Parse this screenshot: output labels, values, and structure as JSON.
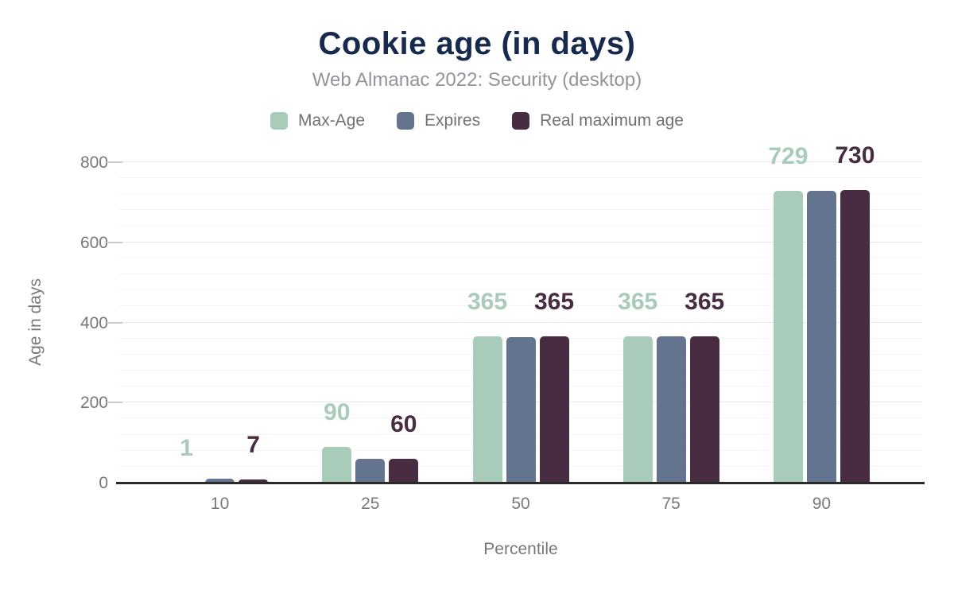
{
  "header": {
    "title": "Cookie age (in days)",
    "subtitle": "Web Almanac 2022: Security (desktop)"
  },
  "colors": {
    "title": "#17294d",
    "subtitle": "#8f959b",
    "legend_text": "#6d7278",
    "axis_text": "#76797c",
    "axis_line": "#2b2b2b",
    "grid_major": "#e7e7e7",
    "grid_minor": "#f4f4f4",
    "tick": "#c9c9c9",
    "series_max_age": "#a8cbba",
    "series_expires": "#64748f",
    "series_real_maximum_age": "#472c42"
  },
  "chart_data": {
    "type": "bar",
    "title": "Cookie age (in days)",
    "subtitle": "Web Almanac 2022: Security (desktop)",
    "xlabel": "Percentile",
    "ylabel": "Age in days",
    "categories": [
      "10",
      "25",
      "50",
      "75",
      "90"
    ],
    "series": [
      {
        "name": "Max-Age",
        "color": "#a8cbba",
        "values": [
          1,
          90,
          365,
          365,
          729
        ],
        "data_labels": [
          "1",
          "90",
          "365",
          "365",
          "729"
        ],
        "show_labels": true
      },
      {
        "name": "Expires",
        "color": "#64748f",
        "values": [
          10,
          60,
          364,
          365,
          729
        ],
        "data_labels": [],
        "show_labels": false
      },
      {
        "name": "Real maximum age",
        "color": "#472c42",
        "values": [
          7,
          60,
          365,
          365,
          730
        ],
        "data_labels": [
          "7",
          "60",
          "365",
          "365",
          "730"
        ],
        "show_labels": true
      }
    ],
    "ylim": [
      0,
      800
    ],
    "yticks": [
      0,
      200,
      400,
      600,
      800
    ],
    "minor_grid_step": 40,
    "major_grid_step": 200,
    "grid": "on",
    "legend_position": "top"
  }
}
